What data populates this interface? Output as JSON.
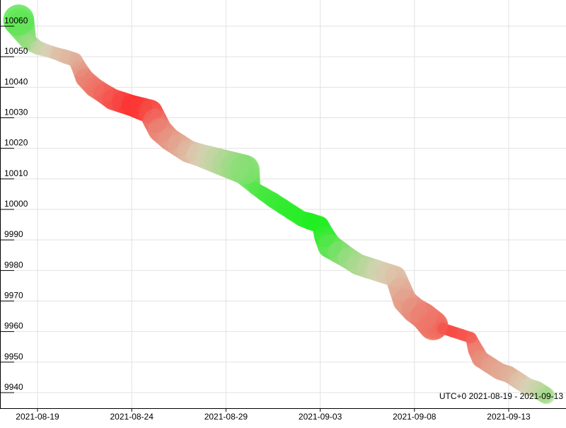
{
  "chart_data": {
    "type": "scatter",
    "title": "",
    "xlabel": "",
    "ylabel": "",
    "timezone_range_label": "UTC+0 2021-08-19 - 2021-09-13",
    "x_ticks": [
      "2021-08-19",
      "2021-08-24",
      "2021-08-29",
      "2021-09-03",
      "2021-09-08",
      "2021-09-13"
    ],
    "y_ticks": [
      10060,
      10050,
      10040,
      10030,
      10020,
      10010,
      10000,
      9990,
      9980,
      9970,
      9960,
      9950,
      9940
    ],
    "xlim": [
      "2021-08-18",
      "2021-09-15"
    ],
    "ylim": [
      9933,
      10067
    ],
    "grid": true,
    "legend": "none",
    "colors": {
      "down": "#ff2a2a",
      "up": "#22ee22",
      "neutral": "#d9d2b6"
    },
    "color_scale": "green = positive change, red = negative change, intensity = magnitude",
    "series": [
      {
        "points": [
          {
            "x": "2021-08-18 00:00",
            "y": 10062,
            "size": 22,
            "change": 0.7
          },
          {
            "x": "2021-08-18 12:00",
            "y": 10055,
            "size": 12,
            "change": 0.4
          },
          {
            "x": "2021-08-19 00:00",
            "y": 10053,
            "size": 10,
            "change": 0.1
          },
          {
            "x": "2021-08-19 12:00",
            "y": 10052,
            "size": 9,
            "change": 0.0
          },
          {
            "x": "2021-08-20 00:00",
            "y": 10051,
            "size": 9,
            "change": -0.1
          },
          {
            "x": "2021-08-20 12:00",
            "y": 10050,
            "size": 10,
            "change": -0.15
          },
          {
            "x": "2021-08-21 00:00",
            "y": 10049,
            "size": 10,
            "change": -0.2
          },
          {
            "x": "2021-08-21 06:00",
            "y": 10046,
            "size": 11,
            "change": -0.3
          },
          {
            "x": "2021-08-21 12:00",
            "y": 10043,
            "size": 13,
            "change": -0.45
          },
          {
            "x": "2021-08-22 00:00",
            "y": 10040,
            "size": 14,
            "change": -0.55
          },
          {
            "x": "2021-08-22 12:00",
            "y": 10038,
            "size": 14,
            "change": -0.65
          },
          {
            "x": "2021-08-23 00:00",
            "y": 10036,
            "size": 15,
            "change": -0.75
          },
          {
            "x": "2021-08-23 12:00",
            "y": 10035,
            "size": 15,
            "change": -0.85
          },
          {
            "x": "2021-08-24 00:00",
            "y": 10034,
            "size": 15,
            "change": -0.95
          },
          {
            "x": "2021-08-24 12:00",
            "y": 10033,
            "size": 16,
            "change": -0.9
          },
          {
            "x": "2021-08-25 00:00",
            "y": 10032,
            "size": 17,
            "change": -0.8
          },
          {
            "x": "2021-08-25 06:00",
            "y": 10029,
            "size": 17,
            "change": -0.6
          },
          {
            "x": "2021-08-25 12:00",
            "y": 10026,
            "size": 17,
            "change": -0.45
          },
          {
            "x": "2021-08-26 00:00",
            "y": 10023,
            "size": 16,
            "change": -0.35
          },
          {
            "x": "2021-08-26 12:00",
            "y": 10021,
            "size": 16,
            "change": -0.25
          },
          {
            "x": "2021-08-27 00:00",
            "y": 10019,
            "size": 16,
            "change": -0.15
          },
          {
            "x": "2021-08-27 12:00",
            "y": 10018,
            "size": 16,
            "change": -0.05
          },
          {
            "x": "2021-08-28 00:00",
            "y": 10017,
            "size": 17,
            "change": 0.05
          },
          {
            "x": "2021-08-28 12:00",
            "y": 10016,
            "size": 18,
            "change": 0.15
          },
          {
            "x": "2021-08-29 00:00",
            "y": 10015,
            "size": 19,
            "change": 0.25
          },
          {
            "x": "2021-08-29 12:00",
            "y": 10014,
            "size": 20,
            "change": 0.35
          },
          {
            "x": "2021-08-30 00:00",
            "y": 10013,
            "size": 21,
            "change": 0.45
          },
          {
            "x": "2021-08-30 12:00",
            "y": 10007,
            "size": 9,
            "change": 0.7
          },
          {
            "x": "2021-08-31 00:00",
            "y": 10005,
            "size": 10,
            "change": 0.8
          },
          {
            "x": "2021-08-31 12:00",
            "y": 10003,
            "size": 11,
            "change": 0.85
          },
          {
            "x": "2021-09-01 00:00",
            "y": 10001,
            "size": 11,
            "change": 0.9
          },
          {
            "x": "2021-09-01 12:00",
            "y": 9999,
            "size": 11,
            "change": 0.95
          },
          {
            "x": "2021-09-02 00:00",
            "y": 9997,
            "size": 11,
            "change": 0.95
          },
          {
            "x": "2021-09-02 12:00",
            "y": 9996,
            "size": 12,
            "change": 1.0
          },
          {
            "x": "2021-09-03 00:00",
            "y": 9995,
            "size": 12,
            "change": 1.0
          },
          {
            "x": "2021-09-03 06:00",
            "y": 9991,
            "size": 15,
            "change": 0.9
          },
          {
            "x": "2021-09-03 12:00",
            "y": 9988,
            "size": 17,
            "change": 0.7
          },
          {
            "x": "2021-09-04 00:00",
            "y": 9986,
            "size": 16,
            "change": 0.5
          },
          {
            "x": "2021-09-04 12:00",
            "y": 9984,
            "size": 15,
            "change": 0.35
          },
          {
            "x": "2021-09-05 00:00",
            "y": 9982,
            "size": 15,
            "change": 0.25
          },
          {
            "x": "2021-09-05 12:00",
            "y": 9981,
            "size": 15,
            "change": 0.15
          },
          {
            "x": "2021-09-06 00:00",
            "y": 9980,
            "size": 15,
            "change": 0.05
          },
          {
            "x": "2021-09-06 12:00",
            "y": 9979,
            "size": 15,
            "change": -0.05
          },
          {
            "x": "2021-09-07 00:00",
            "y": 9978,
            "size": 15,
            "change": -0.1
          },
          {
            "x": "2021-09-07 06:00",
            "y": 9974,
            "size": 16,
            "change": -0.2
          },
          {
            "x": "2021-09-07 12:00",
            "y": 9970,
            "size": 17,
            "change": -0.3
          },
          {
            "x": "2021-09-08 00:00",
            "y": 9967,
            "size": 18,
            "change": -0.4
          },
          {
            "x": "2021-09-08 12:00",
            "y": 9965,
            "size": 19,
            "change": -0.5
          },
          {
            "x": "2021-09-09 00:00",
            "y": 9962,
            "size": 21,
            "change": -0.55
          },
          {
            "x": "2021-09-09 12:00",
            "y": 9961,
            "size": 8,
            "change": -0.8
          },
          {
            "x": "2021-09-10 00:00",
            "y": 9960,
            "size": 8,
            "change": -0.8
          },
          {
            "x": "2021-09-10 12:00",
            "y": 9959,
            "size": 8,
            "change": -0.75
          },
          {
            "x": "2021-09-11 00:00",
            "y": 9958,
            "size": 8,
            "change": -0.7
          },
          {
            "x": "2021-09-11 06:00",
            "y": 9954,
            "size": 11,
            "change": -0.5
          },
          {
            "x": "2021-09-11 12:00",
            "y": 9951,
            "size": 12,
            "change": -0.4
          },
          {
            "x": "2021-09-12 00:00",
            "y": 9949,
            "size": 12,
            "change": -0.3
          },
          {
            "x": "2021-09-12 12:00",
            "y": 9947,
            "size": 12,
            "change": -0.25
          },
          {
            "x": "2021-09-13 00:00",
            "y": 9946,
            "size": 12,
            "change": -0.2
          },
          {
            "x": "2021-09-13 12:00",
            "y": 9944,
            "size": 12,
            "change": -0.1
          },
          {
            "x": "2021-09-14 00:00",
            "y": 9942,
            "size": 12,
            "change": 0.0
          },
          {
            "x": "2021-09-14 12:00",
            "y": 9941,
            "size": 12,
            "change": 0.1
          },
          {
            "x": "2021-09-15 00:00",
            "y": 9939,
            "size": 12,
            "change": 0.3
          }
        ]
      }
    ]
  }
}
